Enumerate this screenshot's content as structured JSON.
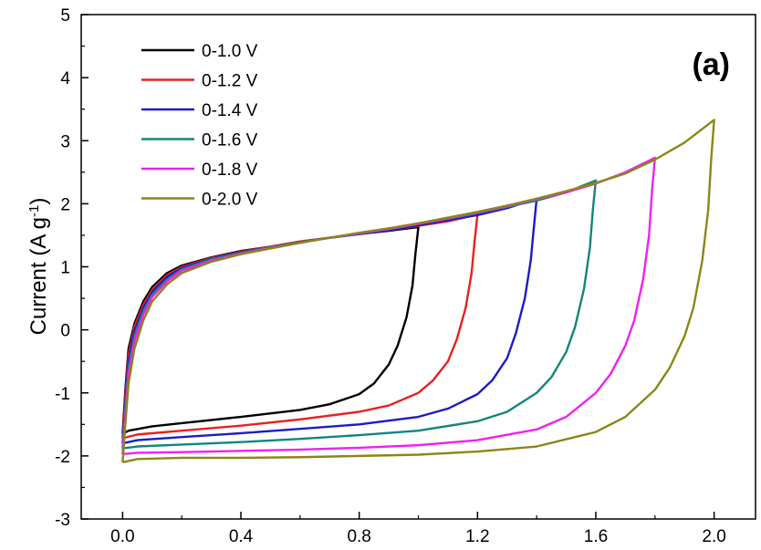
{
  "chart_data": {
    "type": "line",
    "title": "",
    "panel_label": "(a)",
    "xlabel": "",
    "ylabel": {
      "main": "Current (A g",
      "sup": "-1",
      "tail": ")"
    },
    "xlim": [
      -0.14,
      2.14
    ],
    "ylim": [
      -3,
      5
    ],
    "xticks": [
      0.0,
      0.4,
      0.8,
      1.2,
      1.6,
      2.0
    ],
    "xtick_labels": [
      "0.0",
      "0.4",
      "0.8",
      "1.2",
      "1.6",
      "2.0"
    ],
    "yticks": [
      -3,
      -2,
      -1,
      0,
      1,
      2,
      3,
      4,
      5
    ],
    "ytick_labels": [
      "-3",
      "-2",
      "-1",
      "0",
      "1",
      "2",
      "3",
      "4",
      "5"
    ],
    "legend_position": "top-left",
    "series": [
      {
        "name": "0-1.0 V",
        "color": "#000000",
        "vmax": 1.0,
        "forward": [
          [
            0.0,
            -1.65
          ],
          [
            0.01,
            -0.9
          ],
          [
            0.02,
            -0.3
          ],
          [
            0.04,
            0.1
          ],
          [
            0.07,
            0.45
          ],
          [
            0.1,
            0.68
          ],
          [
            0.15,
            0.9
          ],
          [
            0.2,
            1.02
          ],
          [
            0.3,
            1.15
          ],
          [
            0.4,
            1.25
          ],
          [
            0.5,
            1.32
          ],
          [
            0.6,
            1.4
          ],
          [
            0.7,
            1.46
          ],
          [
            0.8,
            1.52
          ],
          [
            0.9,
            1.57
          ],
          [
            1.0,
            1.63
          ]
        ],
        "reverse": [
          [
            1.0,
            1.63
          ],
          [
            0.99,
            1.2
          ],
          [
            0.98,
            0.7
          ],
          [
            0.96,
            0.2
          ],
          [
            0.93,
            -0.25
          ],
          [
            0.9,
            -0.55
          ],
          [
            0.85,
            -0.85
          ],
          [
            0.8,
            -1.02
          ],
          [
            0.7,
            -1.18
          ],
          [
            0.6,
            -1.27
          ],
          [
            0.4,
            -1.38
          ],
          [
            0.2,
            -1.48
          ],
          [
            0.1,
            -1.53
          ],
          [
            0.02,
            -1.6
          ],
          [
            0.0,
            -1.65
          ]
        ]
      },
      {
        "name": "0-1.2 V",
        "color": "#e8201e",
        "vmax": 1.2,
        "forward": [
          [
            0.0,
            -1.72
          ],
          [
            0.01,
            -1.0
          ],
          [
            0.02,
            -0.4
          ],
          [
            0.04,
            0.05
          ],
          [
            0.07,
            0.4
          ],
          [
            0.1,
            0.64
          ],
          [
            0.15,
            0.87
          ],
          [
            0.2,
            1.0
          ],
          [
            0.3,
            1.14
          ],
          [
            0.4,
            1.24
          ],
          [
            0.5,
            1.32
          ],
          [
            0.6,
            1.4
          ],
          [
            0.7,
            1.46
          ],
          [
            0.8,
            1.52
          ],
          [
            0.9,
            1.58
          ],
          [
            1.0,
            1.65
          ],
          [
            1.1,
            1.72
          ],
          [
            1.2,
            1.83
          ]
        ],
        "reverse": [
          [
            1.2,
            1.83
          ],
          [
            1.19,
            1.4
          ],
          [
            1.18,
            0.9
          ],
          [
            1.16,
            0.35
          ],
          [
            1.13,
            -0.15
          ],
          [
            1.1,
            -0.5
          ],
          [
            1.05,
            -0.8
          ],
          [
            1.0,
            -1.0
          ],
          [
            0.9,
            -1.2
          ],
          [
            0.8,
            -1.3
          ],
          [
            0.6,
            -1.42
          ],
          [
            0.4,
            -1.52
          ],
          [
            0.2,
            -1.6
          ],
          [
            0.05,
            -1.66
          ],
          [
            0.0,
            -1.72
          ]
        ]
      },
      {
        "name": "0-1.4 V",
        "color": "#1c1cc4",
        "vmax": 1.4,
        "forward": [
          [
            0.0,
            -1.8
          ],
          [
            0.01,
            -1.1
          ],
          [
            0.02,
            -0.5
          ],
          [
            0.04,
            -0.02
          ],
          [
            0.07,
            0.35
          ],
          [
            0.1,
            0.6
          ],
          [
            0.15,
            0.84
          ],
          [
            0.2,
            0.98
          ],
          [
            0.3,
            1.13
          ],
          [
            0.4,
            1.23
          ],
          [
            0.5,
            1.31
          ],
          [
            0.6,
            1.39
          ],
          [
            0.7,
            1.46
          ],
          [
            0.8,
            1.52
          ],
          [
            0.9,
            1.58
          ],
          [
            1.0,
            1.66
          ],
          [
            1.1,
            1.74
          ],
          [
            1.2,
            1.82
          ],
          [
            1.3,
            1.93
          ],
          [
            1.4,
            2.08
          ]
        ],
        "reverse": [
          [
            1.4,
            2.08
          ],
          [
            1.39,
            1.6
          ],
          [
            1.38,
            1.1
          ],
          [
            1.36,
            0.5
          ],
          [
            1.33,
            -0.05
          ],
          [
            1.3,
            -0.45
          ],
          [
            1.25,
            -0.8
          ],
          [
            1.2,
            -1.02
          ],
          [
            1.1,
            -1.25
          ],
          [
            1.0,
            -1.38
          ],
          [
            0.8,
            -1.5
          ],
          [
            0.6,
            -1.57
          ],
          [
            0.4,
            -1.64
          ],
          [
            0.2,
            -1.7
          ],
          [
            0.05,
            -1.75
          ],
          [
            0.0,
            -1.8
          ]
        ]
      },
      {
        "name": "0-1.6 V",
        "color": "#13857f",
        "vmax": 1.6,
        "forward": [
          [
            0.0,
            -1.88
          ],
          [
            0.01,
            -1.2
          ],
          [
            0.02,
            -0.6
          ],
          [
            0.04,
            -0.1
          ],
          [
            0.07,
            0.3
          ],
          [
            0.1,
            0.56
          ],
          [
            0.15,
            0.8
          ],
          [
            0.2,
            0.96
          ],
          [
            0.3,
            1.12
          ],
          [
            0.4,
            1.22
          ],
          [
            0.5,
            1.31
          ],
          [
            0.6,
            1.39
          ],
          [
            0.7,
            1.46
          ],
          [
            0.8,
            1.53
          ],
          [
            0.9,
            1.6
          ],
          [
            1.0,
            1.68
          ],
          [
            1.1,
            1.76
          ],
          [
            1.2,
            1.85
          ],
          [
            1.3,
            1.95
          ],
          [
            1.4,
            2.05
          ],
          [
            1.5,
            2.18
          ],
          [
            1.6,
            2.37
          ]
        ],
        "reverse": [
          [
            1.6,
            2.37
          ],
          [
            1.59,
            1.9
          ],
          [
            1.58,
            1.3
          ],
          [
            1.56,
            0.65
          ],
          [
            1.53,
            0.05
          ],
          [
            1.5,
            -0.35
          ],
          [
            1.45,
            -0.75
          ],
          [
            1.4,
            -1.0
          ],
          [
            1.3,
            -1.3
          ],
          [
            1.2,
            -1.45
          ],
          [
            1.0,
            -1.6
          ],
          [
            0.8,
            -1.67
          ],
          [
            0.6,
            -1.73
          ],
          [
            0.4,
            -1.78
          ],
          [
            0.2,
            -1.82
          ],
          [
            0.05,
            -1.85
          ],
          [
            0.0,
            -1.88
          ]
        ]
      },
      {
        "name": "0-1.8 V",
        "color": "#f020f0",
        "vmax": 1.8,
        "forward": [
          [
            0.0,
            -1.97
          ],
          [
            0.01,
            -1.3
          ],
          [
            0.02,
            -0.7
          ],
          [
            0.04,
            -0.18
          ],
          [
            0.07,
            0.24
          ],
          [
            0.1,
            0.52
          ],
          [
            0.15,
            0.77
          ],
          [
            0.2,
            0.94
          ],
          [
            0.3,
            1.1
          ],
          [
            0.4,
            1.21
          ],
          [
            0.5,
            1.3
          ],
          [
            0.6,
            1.38
          ],
          [
            0.7,
            1.46
          ],
          [
            0.8,
            1.53
          ],
          [
            0.9,
            1.6
          ],
          [
            1.0,
            1.68
          ],
          [
            1.1,
            1.77
          ],
          [
            1.2,
            1.86
          ],
          [
            1.3,
            1.96
          ],
          [
            1.4,
            2.07
          ],
          [
            1.5,
            2.18
          ],
          [
            1.6,
            2.32
          ],
          [
            1.7,
            2.5
          ],
          [
            1.8,
            2.73
          ]
        ],
        "reverse": [
          [
            1.8,
            2.73
          ],
          [
            1.79,
            2.2
          ],
          [
            1.78,
            1.5
          ],
          [
            1.76,
            0.8
          ],
          [
            1.73,
            0.15
          ],
          [
            1.7,
            -0.25
          ],
          [
            1.65,
            -0.7
          ],
          [
            1.6,
            -1.0
          ],
          [
            1.5,
            -1.38
          ],
          [
            1.4,
            -1.58
          ],
          [
            1.2,
            -1.75
          ],
          [
            1.0,
            -1.83
          ],
          [
            0.8,
            -1.87
          ],
          [
            0.6,
            -1.9
          ],
          [
            0.4,
            -1.92
          ],
          [
            0.2,
            -1.94
          ],
          [
            0.05,
            -1.95
          ],
          [
            0.0,
            -1.97
          ]
        ]
      },
      {
        "name": "0-2.0 V",
        "color": "#8c8618",
        "vmax": 2.0,
        "forward": [
          [
            0.0,
            -2.1
          ],
          [
            0.01,
            -1.45
          ],
          [
            0.02,
            -0.85
          ],
          [
            0.04,
            -0.3
          ],
          [
            0.07,
            0.15
          ],
          [
            0.1,
            0.45
          ],
          [
            0.15,
            0.72
          ],
          [
            0.2,
            0.9
          ],
          [
            0.3,
            1.08
          ],
          [
            0.4,
            1.2
          ],
          [
            0.5,
            1.29
          ],
          [
            0.6,
            1.38
          ],
          [
            0.7,
            1.46
          ],
          [
            0.8,
            1.54
          ],
          [
            0.9,
            1.61
          ],
          [
            1.0,
            1.69
          ],
          [
            1.1,
            1.78
          ],
          [
            1.2,
            1.87
          ],
          [
            1.3,
            1.97
          ],
          [
            1.4,
            2.08
          ],
          [
            1.5,
            2.2
          ],
          [
            1.6,
            2.33
          ],
          [
            1.7,
            2.48
          ],
          [
            1.8,
            2.7
          ],
          [
            1.9,
            2.97
          ],
          [
            2.0,
            3.33
          ]
        ],
        "reverse": [
          [
            2.0,
            3.33
          ],
          [
            1.99,
            2.7
          ],
          [
            1.98,
            1.9
          ],
          [
            1.96,
            1.1
          ],
          [
            1.93,
            0.35
          ],
          [
            1.9,
            -0.1
          ],
          [
            1.85,
            -0.6
          ],
          [
            1.8,
            -0.95
          ],
          [
            1.7,
            -1.38
          ],
          [
            1.6,
            -1.62
          ],
          [
            1.4,
            -1.85
          ],
          [
            1.2,
            -1.93
          ],
          [
            1.0,
            -1.98
          ],
          [
            0.8,
            -2.0
          ],
          [
            0.6,
            -2.02
          ],
          [
            0.4,
            -2.03
          ],
          [
            0.2,
            -2.03
          ],
          [
            0.05,
            -2.05
          ],
          [
            0.0,
            -2.1
          ]
        ]
      }
    ]
  }
}
